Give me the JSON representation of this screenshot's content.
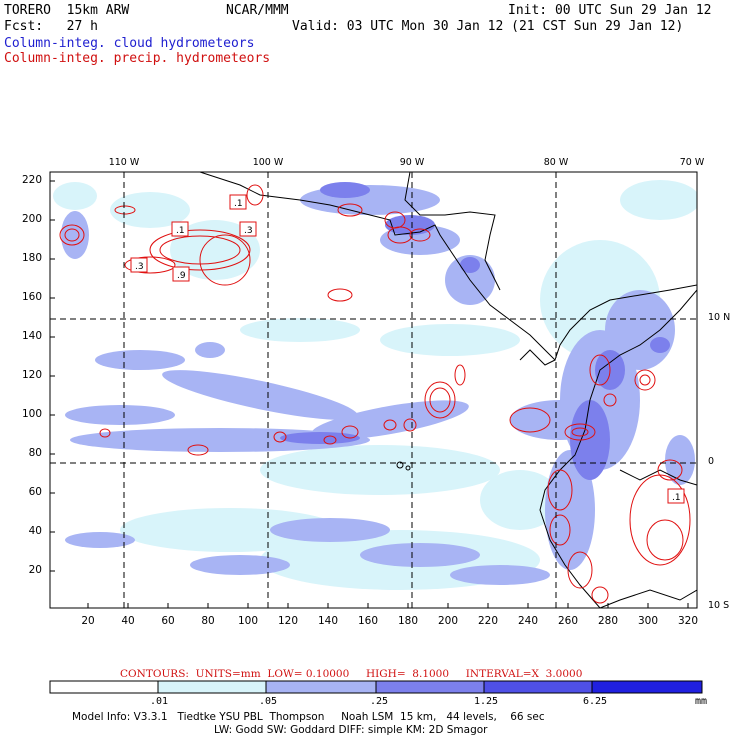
{
  "header": {
    "model_name": "TORERO  15km ARW",
    "org": "NCAR/MMM",
    "init": "Init: 00 UTC Sun 29 Jan 12",
    "fcst": "Fcst:   27 h",
    "valid": "Valid: 03 UTC Mon 30 Jan 12 (21 CST Sun 29 Jan 12)",
    "field_blue": "Column-integ. cloud hydrometeors",
    "field_red": "Column-integ. precip. hydrometeors"
  },
  "map": {
    "y_ticks": [
      "220",
      "200",
      "180",
      "160",
      "140",
      "120",
      "100",
      "80",
      "60",
      "40",
      "20"
    ],
    "x_ticks": [
      "20",
      "40",
      "60",
      "80",
      "100",
      "120",
      "140",
      "160",
      "180",
      "200",
      "220",
      "240",
      "260",
      "280",
      "300",
      "320"
    ],
    "lon_labels": [
      "110 W",
      "100 W",
      "90 W",
      "80 W",
      "70 W"
    ],
    "lat_labels": [
      "10 N",
      "0",
      "10 S"
    ],
    "box_labels": [
      ".1",
      ".1",
      ".3",
      ".3",
      ".9",
      ".1"
    ]
  },
  "contour_info": {
    "text": "CONTOURS:  UNITS=mm  LOW= 0.10000     HIGH=  8.1000     INTERVAL=X  3.0000"
  },
  "colorbar": {
    "labels": [
      ".01",
      ".05",
      ".25",
      "1.25",
      "6.25"
    ],
    "units": "mm",
    "colors": [
      "#ffffff",
      "#d8f4fa",
      "#a8b4f4",
      "#7c80ec",
      "#4f50e6",
      "#2020e0"
    ]
  },
  "footer": {
    "line1": "Model Info: V3.3.1   Tiedtke YSU PBL  Thompson     Noah LSM  15 km,   44 levels,    66 sec",
    "line2": "LW: Godd SW: Goddard DIFF: simple KM: 2D Smagor"
  }
}
